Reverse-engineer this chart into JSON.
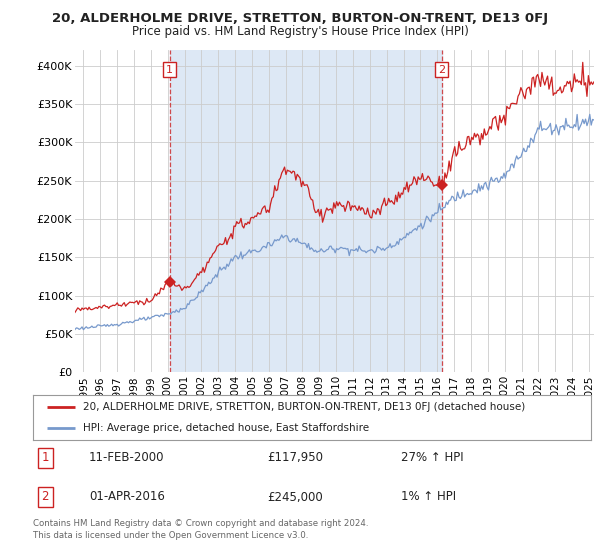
{
  "title1": "20, ALDERHOLME DRIVE, STRETTON, BURTON-ON-TRENT, DE13 0FJ",
  "title2": "Price paid vs. HM Land Registry's House Price Index (HPI)",
  "ylim": [
    0,
    420000
  ],
  "yticks": [
    0,
    50000,
    100000,
    150000,
    200000,
    250000,
    300000,
    350000,
    400000
  ],
  "ytick_labels": [
    "£0",
    "£50K",
    "£100K",
    "£150K",
    "£200K",
    "£250K",
    "£300K",
    "£350K",
    "£400K"
  ],
  "xlim_start": 1994.5,
  "xlim_end": 2025.3,
  "xticks": [
    1995,
    1996,
    1997,
    1998,
    1999,
    2000,
    2001,
    2002,
    2003,
    2004,
    2005,
    2006,
    2007,
    2008,
    2009,
    2010,
    2011,
    2012,
    2013,
    2014,
    2015,
    2016,
    2017,
    2018,
    2019,
    2020,
    2021,
    2022,
    2023,
    2024,
    2025
  ],
  "sale1_x": 2000.11,
  "sale1_y": 117950,
  "sale1_label": "1",
  "sale1_date": "11-FEB-2000",
  "sale1_price": "£117,950",
  "sale1_hpi": "27% ↑ HPI",
  "sale2_x": 2016.25,
  "sale2_y": 245000,
  "sale2_label": "2",
  "sale2_date": "01-APR-2016",
  "sale2_price": "£245,000",
  "sale2_hpi": "1% ↑ HPI",
  "red_color": "#cc2222",
  "blue_color": "#7799cc",
  "shade_color": "#dde8f5",
  "legend_label1": "20, ALDERHOLME DRIVE, STRETTON, BURTON-ON-TRENT, DE13 0FJ (detached house)",
  "legend_label2": "HPI: Average price, detached house, East Staffordshire",
  "footer": "Contains HM Land Registry data © Crown copyright and database right 2024.\nThis data is licensed under the Open Government Licence v3.0.",
  "background_color": "#ffffff",
  "grid_color": "#cccccc",
  "hpi_profile": [
    [
      1994.5,
      57000
    ],
    [
      1995.0,
      58000
    ],
    [
      1996.0,
      60000
    ],
    [
      1997.0,
      63000
    ],
    [
      1998.0,
      67000
    ],
    [
      1999.0,
      71000
    ],
    [
      2000.0,
      76000
    ],
    [
      2001.0,
      84000
    ],
    [
      2002.0,
      105000
    ],
    [
      2003.0,
      130000
    ],
    [
      2004.0,
      150000
    ],
    [
      2005.0,
      157000
    ],
    [
      2006.0,
      165000
    ],
    [
      2007.0,
      178000
    ],
    [
      2008.0,
      168000
    ],
    [
      2009.0,
      157000
    ],
    [
      2010.0,
      163000
    ],
    [
      2011.0,
      160000
    ],
    [
      2012.0,
      158000
    ],
    [
      2013.0,
      163000
    ],
    [
      2014.0,
      175000
    ],
    [
      2015.0,
      192000
    ],
    [
      2016.0,
      208000
    ],
    [
      2017.0,
      228000
    ],
    [
      2018.0,
      238000
    ],
    [
      2019.0,
      245000
    ],
    [
      2020.0,
      255000
    ],
    [
      2021.0,
      285000
    ],
    [
      2022.0,
      318000
    ],
    [
      2023.0,
      318000
    ],
    [
      2024.0,
      325000
    ],
    [
      2025.3,
      328000
    ]
  ],
  "red_profile": [
    [
      1994.5,
      82000
    ],
    [
      1995.0,
      83000
    ],
    [
      1996.0,
      85000
    ],
    [
      1997.0,
      88000
    ],
    [
      1998.0,
      91000
    ],
    [
      1999.0,
      94000
    ],
    [
      2000.11,
      117950
    ],
    [
      2001.0,
      108000
    ],
    [
      2002.0,
      130000
    ],
    [
      2003.0,
      162000
    ],
    [
      2004.0,
      188000
    ],
    [
      2005.0,
      200000
    ],
    [
      2006.0,
      215000
    ],
    [
      2007.0,
      270000
    ],
    [
      2008.0,
      248000
    ],
    [
      2009.0,
      205000
    ],
    [
      2010.0,
      218000
    ],
    [
      2011.0,
      215000
    ],
    [
      2012.0,
      205000
    ],
    [
      2013.0,
      218000
    ],
    [
      2014.0,
      235000
    ],
    [
      2015.0,
      255000
    ],
    [
      2016.25,
      245000
    ],
    [
      2016.5,
      260000
    ],
    [
      2017.0,
      285000
    ],
    [
      2018.0,
      305000
    ],
    [
      2019.0,
      315000
    ],
    [
      2020.0,
      332000
    ],
    [
      2021.0,
      365000
    ],
    [
      2022.0,
      382000
    ],
    [
      2023.0,
      368000
    ],
    [
      2024.0,
      375000
    ],
    [
      2025.3,
      380000
    ]
  ]
}
